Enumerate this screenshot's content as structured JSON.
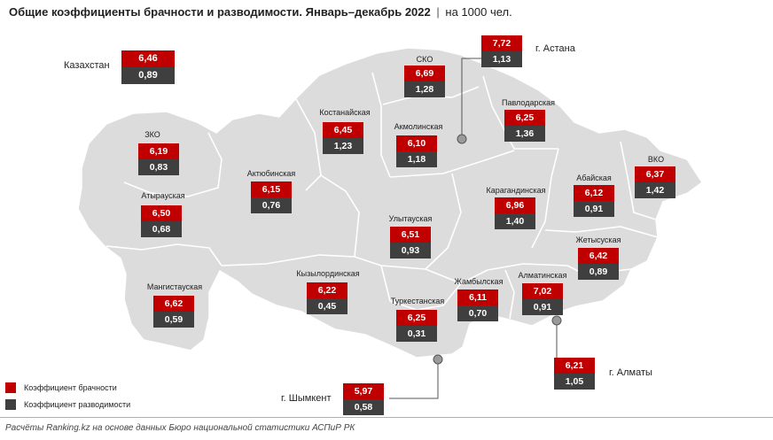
{
  "title": {
    "main": "Общие коэффициенты брачности и разводимости. Январь–декабрь 2022",
    "separator": "|",
    "unit": "на 1000 чел."
  },
  "colors": {
    "marriage": "#c00000",
    "divorce": "#3f3f3f",
    "map_fill": "#dcdcdc",
    "map_border": "#ffffff"
  },
  "kazakhstan": {
    "name": "Казахстан",
    "marriage": "6,46",
    "divorce": "0,89"
  },
  "regions": {
    "sko": {
      "name": "СКО",
      "marriage": "6,69",
      "divorce": "1,28"
    },
    "kostanay": {
      "name": "Костанайская",
      "marriage": "6,45",
      "divorce": "1,23"
    },
    "akmola": {
      "name": "Акмолинская",
      "marriage": "6,10",
      "divorce": "1,18"
    },
    "pavlodar": {
      "name": "Павлодарская",
      "marriage": "6,25",
      "divorce": "1,36"
    },
    "zko": {
      "name": "ЗКО",
      "marriage": "6,19",
      "divorce": "0,83"
    },
    "aktobe": {
      "name": "Актюбинская",
      "marriage": "6,15",
      "divorce": "0,76"
    },
    "atyrau": {
      "name": "Атырауская",
      "marriage": "6,50",
      "divorce": "0,68"
    },
    "ulytau": {
      "name": "Улытауская",
      "marriage": "6,51",
      "divorce": "0,93"
    },
    "karaganda": {
      "name": "Карагандинская",
      "marriage": "6,96",
      "divorce": "1,40"
    },
    "abai": {
      "name": "Абайская",
      "marriage": "6,12",
      "divorce": "0,91"
    },
    "vko": {
      "name": "ВКО",
      "marriage": "6,37",
      "divorce": "1,42"
    },
    "zhetysu": {
      "name": "Жетысуская",
      "marriage": "6,42",
      "divorce": "0,89"
    },
    "mangystau": {
      "name": "Мангистауская",
      "marriage": "6,62",
      "divorce": "0,59"
    },
    "kyzylorda": {
      "name": "Кызылординская",
      "marriage": "6,22",
      "divorce": "0,45"
    },
    "zhambyl": {
      "name": "Жамбылская",
      "marriage": "6,11",
      "divorce": "0,70"
    },
    "almaty_reg": {
      "name": "Алматинская",
      "marriage": "7,02",
      "divorce": "0,91"
    },
    "turkestan": {
      "name": "Туркестанская",
      "marriage": "6,25",
      "divorce": "0,31"
    }
  },
  "cities": {
    "astana": {
      "name": "г. Астана",
      "marriage": "7,72",
      "divorce": "1,13"
    },
    "almaty": {
      "name": "г. Алматы",
      "marriage": "6,21",
      "divorce": "1,05"
    },
    "shymkent": {
      "name": "г. Шымкент",
      "marriage": "5,97",
      "divorce": "0,58"
    }
  },
  "legend": {
    "marriage": "Коэффициент брачности",
    "divorce": "Коэффициент разводимости"
  },
  "footer": "Расчёты Ranking.kz на основе данных Бюро национальной статистики АСПиР РК"
}
